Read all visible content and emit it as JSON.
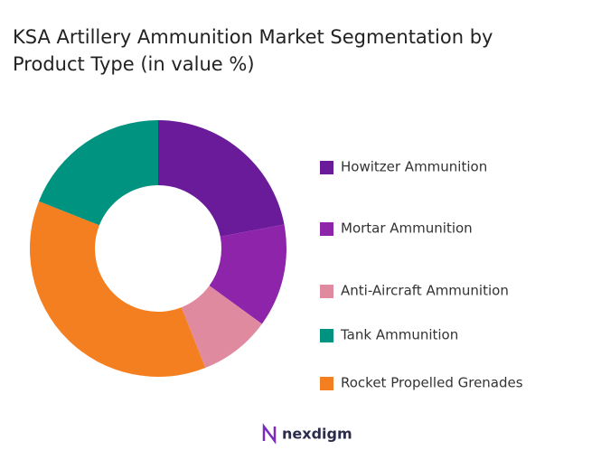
{
  "chart_data": {
    "type": "donut",
    "title": "KSA Artillery Ammunition Market Segmentation by Product Type (in value %)",
    "categories": [
      "Howitzer Ammunition",
      "Mortar Ammunition",
      "Anti-Aircraft Ammunition",
      "Rocket Propelled Grenades",
      "Tank Ammunition"
    ],
    "values": [
      22,
      13,
      9,
      37,
      19
    ],
    "colors": [
      "#6a1b9a",
      "#8e24aa",
      "#e08aa0",
      "#f47f20",
      "#00937f"
    ],
    "legend": "right"
  },
  "brand": "nexdigm"
}
